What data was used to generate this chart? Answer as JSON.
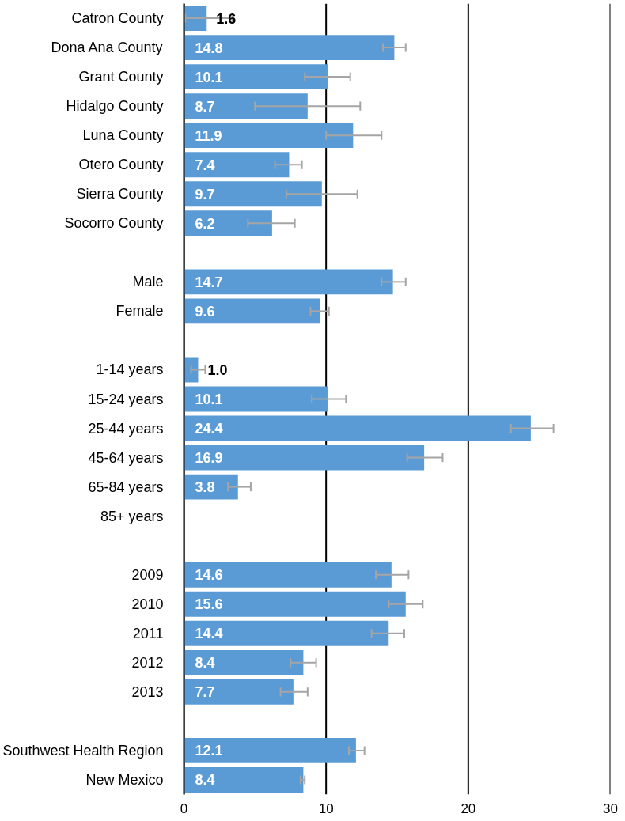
{
  "chart_data": {
    "type": "bar",
    "orientation": "horizontal",
    "categories": [
      "Catron County",
      "Dona Ana County",
      "Grant County",
      "Hidalgo County",
      "Luna County",
      "Otero County",
      "Sierra County",
      "Socorro County",
      null,
      "Male",
      "Female",
      null,
      "1-14 years",
      "15-24 years",
      "25-44 years",
      "45-64 years",
      "65-84 years",
      "85+ years",
      null,
      "2009",
      "2010",
      "2011",
      "2012",
      "2013",
      null,
      "Southwest Health Region",
      "New Mexico"
    ],
    "values": [
      1.6,
      14.8,
      10.1,
      8.7,
      11.9,
      7.4,
      9.7,
      6.2,
      null,
      14.7,
      9.6,
      null,
      1.0,
      10.1,
      24.4,
      16.9,
      3.8,
      null,
      null,
      14.6,
      15.6,
      14.4,
      8.4,
      7.7,
      null,
      12.1,
      8.4
    ],
    "errors": [
      [
        0.1,
        3.4
      ],
      [
        14.0,
        15.6
      ],
      [
        8.5,
        11.7
      ],
      [
        5.0,
        12.4
      ],
      [
        10.0,
        13.9
      ],
      [
        6.4,
        8.3
      ],
      [
        7.2,
        12.2
      ],
      [
        4.5,
        7.8
      ],
      null,
      [
        13.9,
        15.6
      ],
      [
        8.9,
        10.2
      ],
      null,
      [
        0.5,
        1.5
      ],
      [
        9.0,
        11.4
      ],
      [
        23.0,
        26.0
      ],
      [
        15.7,
        18.2
      ],
      [
        3.1,
        4.7
      ],
      null,
      null,
      [
        13.5,
        15.8
      ],
      [
        14.4,
        16.8
      ],
      [
        13.2,
        15.5
      ],
      [
        7.5,
        9.3
      ],
      [
        6.8,
        8.7
      ],
      null,
      [
        11.6,
        12.7
      ],
      [
        8.2,
        8.5
      ]
    ],
    "color": "#5b9bd5",
    "xlim": [
      0,
      30
    ],
    "xticks": [
      0,
      10,
      20,
      30
    ],
    "value_labels": [
      "1.6",
      "14.8",
      "10.1",
      "8.7",
      "11.9",
      "7.4",
      "9.7",
      "6.2",
      null,
      "14.7",
      "9.6",
      null,
      "1.0",
      "10.1",
      "24.4",
      "16.9",
      "3.8",
      null,
      null,
      "14.6",
      "15.6",
      "14.4",
      "8.4",
      "7.7",
      null,
      "12.1",
      "8.4"
    ],
    "grid": "x"
  }
}
